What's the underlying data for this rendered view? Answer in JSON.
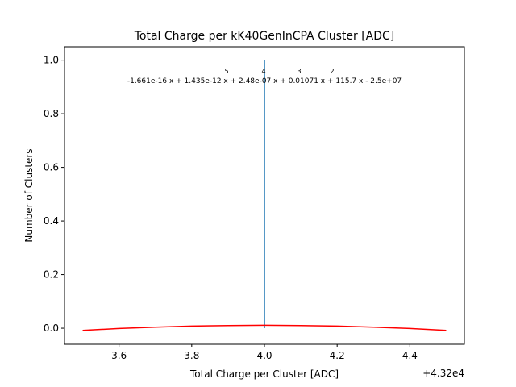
{
  "chart_data": {
    "type": "line",
    "title": "Total Charge per kK40GenInCPA Cluster [ADC]",
    "xlabel": "Total Charge per Cluster [ADC]",
    "ylabel": "Number of Clusters",
    "x_offset_label": "+4.32e4",
    "xlim": [
      43203.45,
      43204.55
    ],
    "ylim": [
      -0.06,
      1.05
    ],
    "xticks": [
      43203.6,
      43203.8,
      43204.0,
      43204.2,
      43204.4
    ],
    "xtick_labels": [
      "3.6",
      "3.8",
      "4.0",
      "4.2",
      "4.4"
    ],
    "yticks": [
      0.0,
      0.2,
      0.4,
      0.6,
      0.8,
      1.0
    ],
    "ytick_labels": [
      "0.0",
      "0.2",
      "0.4",
      "0.6",
      "0.8",
      "1.0"
    ],
    "grid": false,
    "annotation": {
      "exponents": [
        "5",
        "4",
        "3",
        "2"
      ],
      "text": "-1.661e-16 x + 1.435e-12 x + 2.48e-07 x + 0.01071 x + 115.7 x - 2.5e+07"
    },
    "series": [
      {
        "kind": "vline",
        "color": "#1f77b4",
        "x": 43204.0,
        "y": [
          0.0,
          1.0
        ]
      },
      {
        "kind": "fit",
        "color": "#ff0000",
        "x": [
          43203.5,
          43203.6,
          43203.7,
          43203.8,
          43203.9,
          43204.0,
          43204.1,
          43204.2,
          43204.3,
          43204.4,
          43204.5
        ],
        "y": [
          -0.008,
          -0.001,
          0.004,
          0.008,
          0.01,
          0.011,
          0.01,
          0.008,
          0.004,
          -0.001,
          -0.008
        ]
      }
    ]
  }
}
